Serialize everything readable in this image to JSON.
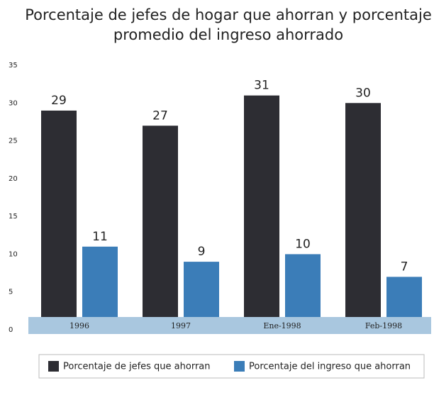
{
  "chart_data": {
    "type": "bar",
    "title": [
      "Porcentaje de jefes de hogar que ahorran y porcentaje",
      "promedio del ingreso ahorrado"
    ],
    "categories": [
      "1996",
      "1997",
      "Ene-1998",
      "Feb-1998"
    ],
    "series": [
      {
        "name": "Porcentaje de jefes que ahorran",
        "color": "#2d2d33",
        "values": [
          29,
          27,
          31,
          30
        ]
      },
      {
        "name": "Porcentaje del ingreso que ahorran",
        "color": "#3b7db8",
        "values": [
          11,
          9,
          10,
          7
        ]
      }
    ],
    "ylim": [
      0,
      35
    ],
    "yticks": [
      0,
      5,
      10,
      15,
      20,
      25,
      30,
      35
    ],
    "grid": false
  }
}
